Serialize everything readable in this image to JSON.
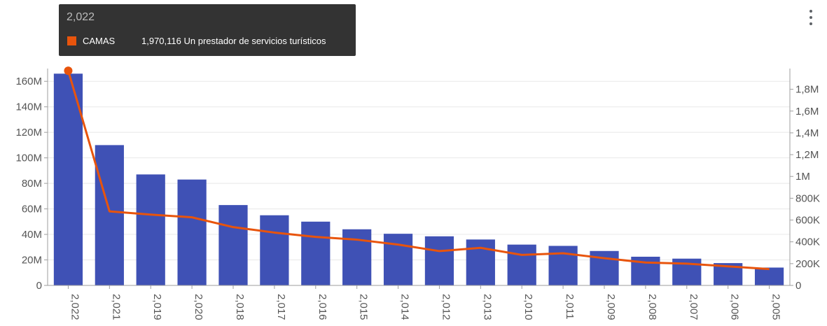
{
  "tooltip": {
    "title": "2,022",
    "series_name": "CAMAS",
    "value_text": "1,970,116 Un prestador de servicios turísticos"
  },
  "colors": {
    "bar": "#3f51b5",
    "line": "#e8540c",
    "grid": "#e8e8e8",
    "axis_text": "#555555",
    "tooltip_bg": "#333333"
  },
  "menu_icon": "more-vert-icon",
  "chart_data": {
    "type": "bar",
    "categories": [
      "2,022",
      "2,021",
      "2,019",
      "2,020",
      "2,018",
      "2,017",
      "2,016",
      "2,015",
      "2,014",
      "2,012",
      "2,013",
      "2,010",
      "2,011",
      "2,009",
      "2,008",
      "2,007",
      "2,006",
      "2,005"
    ],
    "series": [
      {
        "type": "bar",
        "axis": "left",
        "values": [
          166000000,
          110000000,
          87000000,
          83000000,
          63000000,
          55000000,
          50000000,
          44000000,
          40500000,
          38500000,
          36000000,
          32000000,
          31000000,
          27000000,
          22500000,
          21000000,
          17500000,
          14000000
        ]
      },
      {
        "name": "CAMAS",
        "type": "line",
        "axis": "right",
        "values": [
          1970116,
          680000,
          650000,
          625000,
          535000,
          485000,
          445000,
          420000,
          375000,
          315000,
          345000,
          280000,
          295000,
          250000,
          210000,
          200000,
          175000,
          150000
        ]
      }
    ],
    "y_left": {
      "ylim": [
        0,
        170000000
      ],
      "ticks": [
        0,
        20000000,
        40000000,
        60000000,
        80000000,
        100000000,
        120000000,
        140000000,
        160000000
      ],
      "tick_labels": [
        "0",
        "20M",
        "40M",
        "60M",
        "80M",
        "100M",
        "120M",
        "140M",
        "160M"
      ]
    },
    "y_right": {
      "ylim": [
        0,
        1990000
      ],
      "ticks": [
        0,
        200000,
        400000,
        600000,
        800000,
        1000000,
        1200000,
        1400000,
        1600000,
        1800000
      ],
      "tick_labels": [
        "0",
        "200K",
        "400K",
        "600K",
        "800K",
        "1M",
        "1,2M",
        "1,4M",
        "1,6M",
        "1,8M"
      ]
    },
    "highlighted_index": 0,
    "grid": true,
    "legend": "none"
  }
}
